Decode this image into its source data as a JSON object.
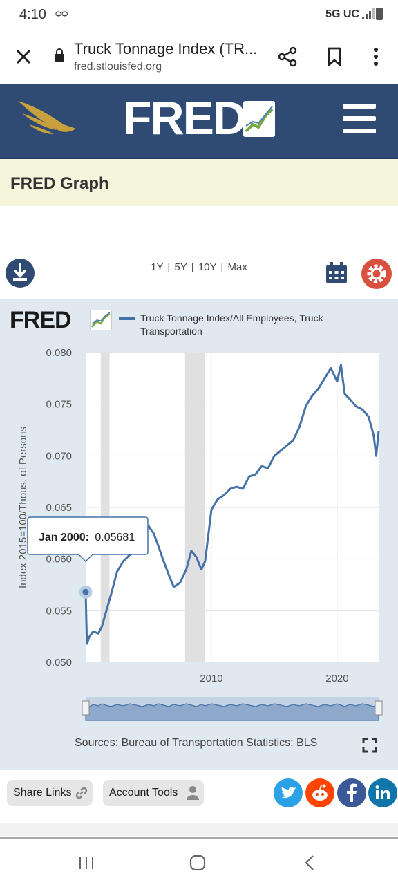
{
  "status_bar": {
    "time": "4:10",
    "voicemail": "ᴑᴑ",
    "network": "5G UC"
  },
  "browser": {
    "title": "Truck Tonnage Index (TR...",
    "url": "fred.stlouisfed.org"
  },
  "header": {
    "logo_text": "FRED",
    "trademark": "®"
  },
  "graph_title": "FRED Graph",
  "range": {
    "y1": "1Y",
    "y5": "5Y",
    "y10": "10Y",
    "max": "Max",
    "sep": "|"
  },
  "chart_logo_text": "FRED",
  "legend_text": "Truck Tonnage Index/All Employees, Truck Transportation",
  "sources": "Sources: Bureau of Transportation Statistics; BLS",
  "share_links_label": "Share Links",
  "account_tools_label": "Account Tools",
  "colors": {
    "header": "#2f4a73",
    "series": "#4572a7",
    "panel": "#e1e9f0",
    "recession": "#e0e0e0"
  },
  "chart_data": {
    "type": "line",
    "title": "",
    "ylabel": "Index 2015=100/Thous. of Persons",
    "xlabel": "",
    "ylim": [
      0.05,
      0.08
    ],
    "xlim": [
      2000.0,
      2023.3
    ],
    "yticks": [
      "0.080",
      "0.075",
      "0.070",
      "0.065",
      "0.060",
      "0.055",
      "0.050"
    ],
    "xticks": [
      "2010",
      "2020"
    ],
    "navigator_label": "2020",
    "recessions": [
      [
        2001.2,
        2001.9
      ],
      [
        2007.9,
        2009.5
      ]
    ],
    "tooltip": {
      "date": "Jan 2000:",
      "value": "0.05681",
      "x": 2000.0,
      "y": 0.05681
    },
    "series": [
      {
        "name": "Truck Tonnage Index/All Employees, Truck Transportation",
        "x": [
          2000.0,
          2000.1,
          2000.3,
          2000.6,
          2001.0,
          2001.3,
          2001.6,
          2002.0,
          2002.5,
          2003.0,
          2003.5,
          2004.0,
          2004.5,
          2005.0,
          2005.4,
          2005.8,
          2006.2,
          2006.6,
          2007.0,
          2007.5,
          2008.0,
          2008.4,
          2008.8,
          2009.2,
          2009.5,
          2010.0,
          2010.5,
          2011.0,
          2011.5,
          2012.0,
          2012.5,
          2013.0,
          2013.5,
          2014.0,
          2014.5,
          2015.0,
          2015.5,
          2016.0,
          2016.5,
          2017.0,
          2017.5,
          2018.0,
          2018.5,
          2019.0,
          2019.5,
          2020.0,
          2020.3,
          2020.6,
          2021.0,
          2021.5,
          2022.0,
          2022.5,
          2022.9,
          2023.1,
          2023.3
        ],
        "y": [
          0.05681,
          0.0518,
          0.0525,
          0.053,
          0.0528,
          0.0535,
          0.0548,
          0.0565,
          0.0588,
          0.0598,
          0.0604,
          0.0608,
          0.0622,
          0.0632,
          0.0625,
          0.0612,
          0.0598,
          0.0585,
          0.0573,
          0.0577,
          0.059,
          0.0608,
          0.0602,
          0.059,
          0.0598,
          0.0648,
          0.0658,
          0.0662,
          0.0668,
          0.067,
          0.0668,
          0.068,
          0.0682,
          0.069,
          0.0688,
          0.07,
          0.0705,
          0.071,
          0.0715,
          0.0728,
          0.0748,
          0.0758,
          0.0765,
          0.0775,
          0.0785,
          0.0772,
          0.0788,
          0.076,
          0.0755,
          0.0748,
          0.0745,
          0.0738,
          0.072,
          0.07,
          0.0724
        ]
      }
    ]
  }
}
